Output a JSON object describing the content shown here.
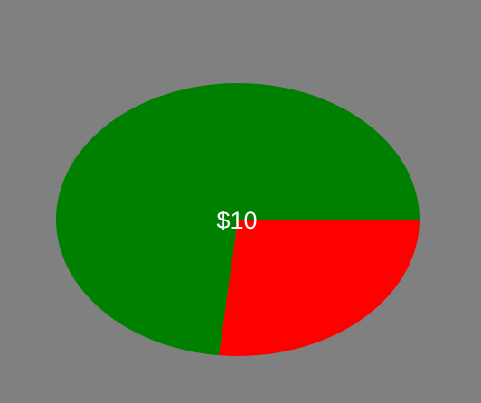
{
  "chart_data": {
    "type": "pie",
    "slices": [
      {
        "value": 0.8,
        "color": "#ff0000"
      },
      {
        "value": 2.2,
        "color": "#008000"
      }
    ],
    "center_label": "$10",
    "background_color": "#808080",
    "label_color": "#ffffff"
  }
}
